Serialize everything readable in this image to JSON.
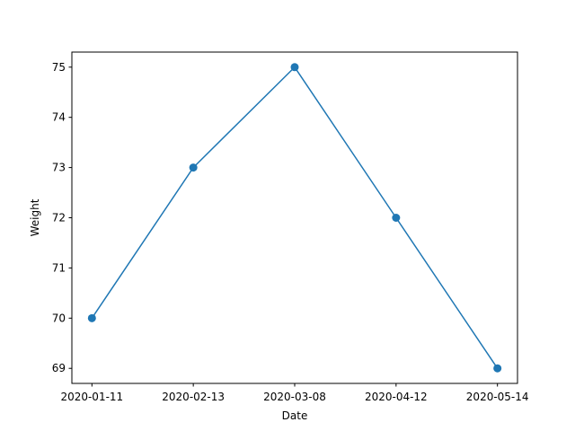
{
  "chart_data": {
    "type": "line",
    "title": "",
    "xlabel": "Date",
    "ylabel": "Weight",
    "categories": [
      "2020-01-11",
      "2020-02-13",
      "2020-03-08",
      "2020-04-12",
      "2020-05-14"
    ],
    "series": [
      {
        "values": [
          70,
          73,
          75,
          72,
          69
        ],
        "color": "#1f77b4",
        "marker": "circle"
      }
    ],
    "yticks": [
      "69",
      "70",
      "71",
      "72",
      "73",
      "74",
      "75"
    ],
    "ylim": [
      68.7,
      75.3
    ],
    "grid": false,
    "legend": "none"
  }
}
